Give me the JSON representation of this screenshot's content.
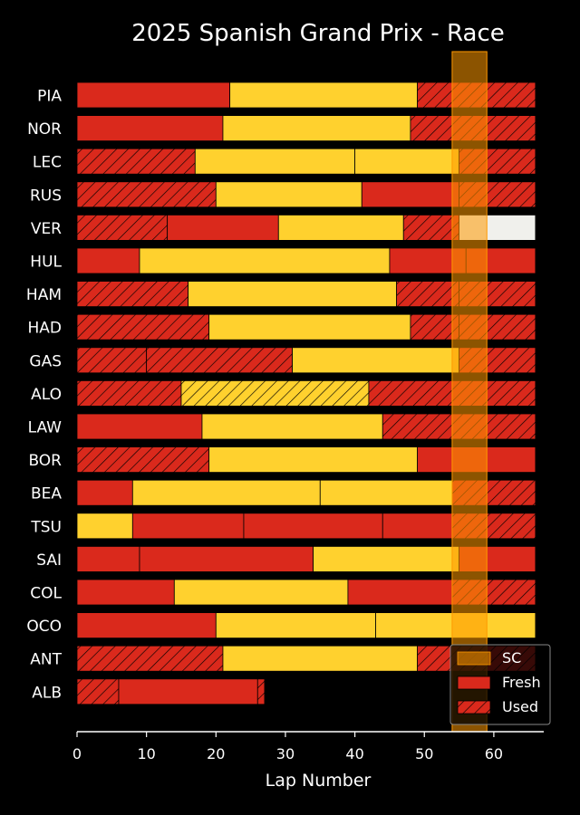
{
  "chart_data": {
    "type": "bar",
    "orientation": "horizontal-stacked",
    "title": "2025 Spanish Grand Prix - Race",
    "xlabel": "Lap Number",
    "ylabel": "",
    "xlim": [
      0,
      66
    ],
    "xticks": [
      "0",
      "10",
      "20",
      "30",
      "40",
      "50",
      "60"
    ],
    "grid": false,
    "legend_position": "bottom-right",
    "legend": [
      {
        "key": "sc",
        "label": "SC"
      },
      {
        "key": "fresh",
        "label": "Fresh"
      },
      {
        "key": "used",
        "label": "Used"
      }
    ],
    "safety_car": {
      "start": 54,
      "end": 59
    },
    "compound_colors": {
      "SOFT": "#da291c",
      "MEDIUM": "#ffd12e",
      "HARD": "#f0f0ec"
    },
    "sc_color": "#ff9900",
    "drivers": [
      {
        "name": "PIA",
        "stints": [
          {
            "compound": "SOFT",
            "fresh": true,
            "start": 0,
            "end": 22
          },
          {
            "compound": "MEDIUM",
            "fresh": true,
            "start": 22,
            "end": 49
          },
          {
            "compound": "SOFT",
            "fresh": false,
            "start": 49,
            "end": 66
          }
        ]
      },
      {
        "name": "NOR",
        "stints": [
          {
            "compound": "SOFT",
            "fresh": true,
            "start": 0,
            "end": 21
          },
          {
            "compound": "MEDIUM",
            "fresh": true,
            "start": 21,
            "end": 48
          },
          {
            "compound": "SOFT",
            "fresh": false,
            "start": 48,
            "end": 66
          }
        ]
      },
      {
        "name": "LEC",
        "stints": [
          {
            "compound": "SOFT",
            "fresh": false,
            "start": 0,
            "end": 17
          },
          {
            "compound": "MEDIUM",
            "fresh": true,
            "start": 17,
            "end": 40
          },
          {
            "compound": "MEDIUM",
            "fresh": true,
            "start": 40,
            "end": 55
          },
          {
            "compound": "SOFT",
            "fresh": false,
            "start": 55,
            "end": 66
          }
        ]
      },
      {
        "name": "RUS",
        "stints": [
          {
            "compound": "SOFT",
            "fresh": false,
            "start": 0,
            "end": 20
          },
          {
            "compound": "MEDIUM",
            "fresh": true,
            "start": 20,
            "end": 41
          },
          {
            "compound": "SOFT",
            "fresh": true,
            "start": 41,
            "end": 55
          },
          {
            "compound": "SOFT",
            "fresh": false,
            "start": 55,
            "end": 66
          }
        ]
      },
      {
        "name": "VER",
        "stints": [
          {
            "compound": "SOFT",
            "fresh": false,
            "start": 0,
            "end": 13
          },
          {
            "compound": "SOFT",
            "fresh": true,
            "start": 13,
            "end": 29
          },
          {
            "compound": "MEDIUM",
            "fresh": true,
            "start": 29,
            "end": 47
          },
          {
            "compound": "SOFT",
            "fresh": false,
            "start": 47,
            "end": 55
          },
          {
            "compound": "HARD",
            "fresh": true,
            "start": 55,
            "end": 66
          }
        ]
      },
      {
        "name": "HUL",
        "stints": [
          {
            "compound": "SOFT",
            "fresh": true,
            "start": 0,
            "end": 9
          },
          {
            "compound": "MEDIUM",
            "fresh": true,
            "start": 9,
            "end": 45
          },
          {
            "compound": "SOFT",
            "fresh": true,
            "start": 45,
            "end": 56
          },
          {
            "compound": "SOFT",
            "fresh": true,
            "start": 56,
            "end": 66
          }
        ]
      },
      {
        "name": "HAM",
        "stints": [
          {
            "compound": "SOFT",
            "fresh": false,
            "start": 0,
            "end": 16
          },
          {
            "compound": "MEDIUM",
            "fresh": true,
            "start": 16,
            "end": 46
          },
          {
            "compound": "SOFT",
            "fresh": false,
            "start": 46,
            "end": 55
          },
          {
            "compound": "SOFT",
            "fresh": false,
            "start": 55,
            "end": 66
          }
        ]
      },
      {
        "name": "HAD",
        "stints": [
          {
            "compound": "SOFT",
            "fresh": false,
            "start": 0,
            "end": 19
          },
          {
            "compound": "MEDIUM",
            "fresh": true,
            "start": 19,
            "end": 48
          },
          {
            "compound": "SOFT",
            "fresh": false,
            "start": 48,
            "end": 55
          },
          {
            "compound": "SOFT",
            "fresh": false,
            "start": 55,
            "end": 66
          }
        ]
      },
      {
        "name": "GAS",
        "stints": [
          {
            "compound": "SOFT",
            "fresh": false,
            "start": 0,
            "end": 10
          },
          {
            "compound": "SOFT",
            "fresh": false,
            "start": 10,
            "end": 31
          },
          {
            "compound": "MEDIUM",
            "fresh": true,
            "start": 31,
            "end": 55
          },
          {
            "compound": "SOFT",
            "fresh": false,
            "start": 55,
            "end": 66
          }
        ]
      },
      {
        "name": "ALO",
        "stints": [
          {
            "compound": "SOFT",
            "fresh": false,
            "start": 0,
            "end": 15
          },
          {
            "compound": "MEDIUM",
            "fresh": false,
            "start": 15,
            "end": 42
          },
          {
            "compound": "SOFT",
            "fresh": false,
            "start": 42,
            "end": 66
          }
        ]
      },
      {
        "name": "LAW",
        "stints": [
          {
            "compound": "SOFT",
            "fresh": true,
            "start": 0,
            "end": 18
          },
          {
            "compound": "MEDIUM",
            "fresh": true,
            "start": 18,
            "end": 44
          },
          {
            "compound": "SOFT",
            "fresh": false,
            "start": 44,
            "end": 66
          }
        ]
      },
      {
        "name": "BOR",
        "stints": [
          {
            "compound": "SOFT",
            "fresh": false,
            "start": 0,
            "end": 19
          },
          {
            "compound": "MEDIUM",
            "fresh": true,
            "start": 19,
            "end": 49
          },
          {
            "compound": "SOFT",
            "fresh": true,
            "start": 49,
            "end": 66
          }
        ]
      },
      {
        "name": "BEA",
        "stints": [
          {
            "compound": "SOFT",
            "fresh": true,
            "start": 0,
            "end": 8
          },
          {
            "compound": "MEDIUM",
            "fresh": true,
            "start": 8,
            "end": 35
          },
          {
            "compound": "MEDIUM",
            "fresh": true,
            "start": 35,
            "end": 54
          },
          {
            "compound": "SOFT",
            "fresh": false,
            "start": 54,
            "end": 66
          }
        ]
      },
      {
        "name": "TSU",
        "stints": [
          {
            "compound": "MEDIUM",
            "fresh": true,
            "start": 0,
            "end": 8
          },
          {
            "compound": "SOFT",
            "fresh": true,
            "start": 8,
            "end": 24
          },
          {
            "compound": "SOFT",
            "fresh": true,
            "start": 24,
            "end": 44
          },
          {
            "compound": "SOFT",
            "fresh": true,
            "start": 44,
            "end": 54
          },
          {
            "compound": "SOFT",
            "fresh": false,
            "start": 54,
            "end": 66
          }
        ]
      },
      {
        "name": "SAI",
        "stints": [
          {
            "compound": "SOFT",
            "fresh": true,
            "start": 0,
            "end": 9
          },
          {
            "compound": "SOFT",
            "fresh": true,
            "start": 9,
            "end": 34
          },
          {
            "compound": "MEDIUM",
            "fresh": true,
            "start": 34,
            "end": 55
          },
          {
            "compound": "SOFT",
            "fresh": true,
            "start": 55,
            "end": 66
          }
        ]
      },
      {
        "name": "COL",
        "stints": [
          {
            "compound": "SOFT",
            "fresh": true,
            "start": 0,
            "end": 14
          },
          {
            "compound": "MEDIUM",
            "fresh": true,
            "start": 14,
            "end": 39
          },
          {
            "compound": "SOFT",
            "fresh": true,
            "start": 39,
            "end": 54
          },
          {
            "compound": "SOFT",
            "fresh": false,
            "start": 54,
            "end": 66
          }
        ]
      },
      {
        "name": "OCO",
        "stints": [
          {
            "compound": "SOFT",
            "fresh": true,
            "start": 0,
            "end": 20
          },
          {
            "compound": "MEDIUM",
            "fresh": true,
            "start": 20,
            "end": 43
          },
          {
            "compound": "MEDIUM",
            "fresh": true,
            "start": 43,
            "end": 66
          }
        ]
      },
      {
        "name": "ANT",
        "stints": [
          {
            "compound": "SOFT",
            "fresh": false,
            "start": 0,
            "end": 21
          },
          {
            "compound": "MEDIUM",
            "fresh": true,
            "start": 21,
            "end": 49
          },
          {
            "compound": "SOFT",
            "fresh": false,
            "start": 49,
            "end": 66
          }
        ]
      },
      {
        "name": "ALB",
        "stints": [
          {
            "compound": "SOFT",
            "fresh": false,
            "start": 0,
            "end": 6
          },
          {
            "compound": "SOFT",
            "fresh": true,
            "start": 6,
            "end": 26
          },
          {
            "compound": "SOFT",
            "fresh": false,
            "start": 26,
            "end": 27
          }
        ]
      }
    ]
  }
}
